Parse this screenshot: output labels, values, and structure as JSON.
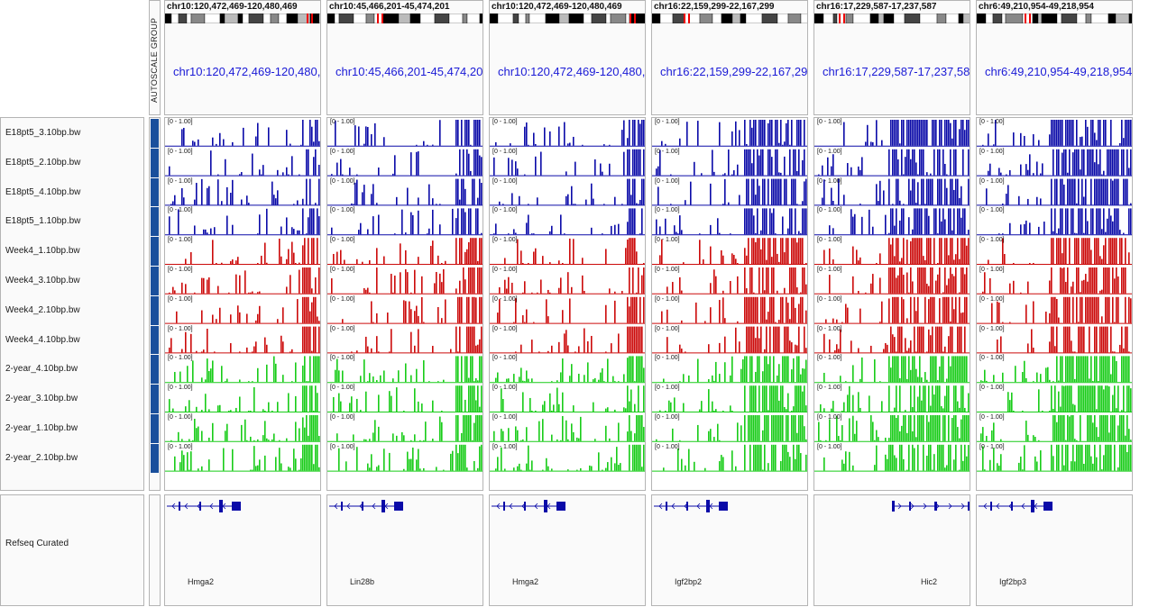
{
  "attribute_header": "AUTOSCALE GROUP",
  "colors": {
    "blue_track": "#0a0aa8",
    "red_track": "#cc0a0a",
    "green_track": "#18cc18",
    "attribute": "#1a4f9c",
    "locus_text": "#1a1ad6",
    "gene": "#0a0aa8"
  },
  "tracks": [
    {
      "name": "E18pt5_3.10bp.bw",
      "group": "blue",
      "range": "[0 - 1.00]"
    },
    {
      "name": "E18pt5_2.10bp.bw",
      "group": "blue",
      "range": "[0 - 1.00]"
    },
    {
      "name": "E18pt5_4.10bp.bw",
      "group": "blue",
      "range": "[0 - 1.00]"
    },
    {
      "name": "E18pt5_1.10bp.bw",
      "group": "blue",
      "range": "[0 - 1.00]"
    },
    {
      "name": "Week4_1.10bp.bw",
      "group": "red",
      "range": "[0 - 1.00]"
    },
    {
      "name": "Week4_3.10bp.bw",
      "group": "red",
      "range": "[0 - 1.00]"
    },
    {
      "name": "Week4_2.10bp.bw",
      "group": "red",
      "range": "[0 - 1.00]"
    },
    {
      "name": "Week4_4.10bp.bw",
      "group": "red",
      "range": "[0 - 1.00]"
    },
    {
      "name": "2-year_4.10bp.bw",
      "group": "green",
      "range": "[0 - 1.00]"
    },
    {
      "name": "2-year_3.10bp.bw",
      "group": "green",
      "range": "[0 - 1.00]"
    },
    {
      "name": "2-year_1.10bp.bw",
      "group": "green",
      "range": "[0 - 1.00]"
    },
    {
      "name": "2-year_2.10bp.bw",
      "group": "green",
      "range": "[0 - 1.00]"
    }
  ],
  "gene_track": {
    "name": "Refseq Curated"
  },
  "panels": [
    {
      "title": "chr10:120,472,469-120,480,469",
      "locus": "chr10:120,472,469-120,480,469",
      "gene": "Hmga2",
      "strand": "-"
    },
    {
      "title": "chr10:45,466,201-45,474,201",
      "locus": "chr10:45,466,201-45,474,201",
      "gene": "Lin28b",
      "strand": "-"
    },
    {
      "title": "chr10:120,472,469-120,480,469",
      "locus": "chr10:120,472,469-120,480,469",
      "gene": "Hmga2",
      "strand": "-"
    },
    {
      "title": "chr16:22,159,299-22,167,299",
      "locus": "chr16:22,159,299-22,167,299",
      "gene": "Igf2bp2",
      "strand": "-"
    },
    {
      "title": "chr16:17,229,587-17,237,587",
      "locus": "chr16:17,229,587-17,237,587",
      "gene": "Hic2",
      "strand": "+"
    },
    {
      "title": "chr6:49,210,954-49,218,954",
      "locus": "chr6:49,210,954-49,218,954",
      "gene": "Igf2bp3",
      "strand": "-"
    }
  ]
}
